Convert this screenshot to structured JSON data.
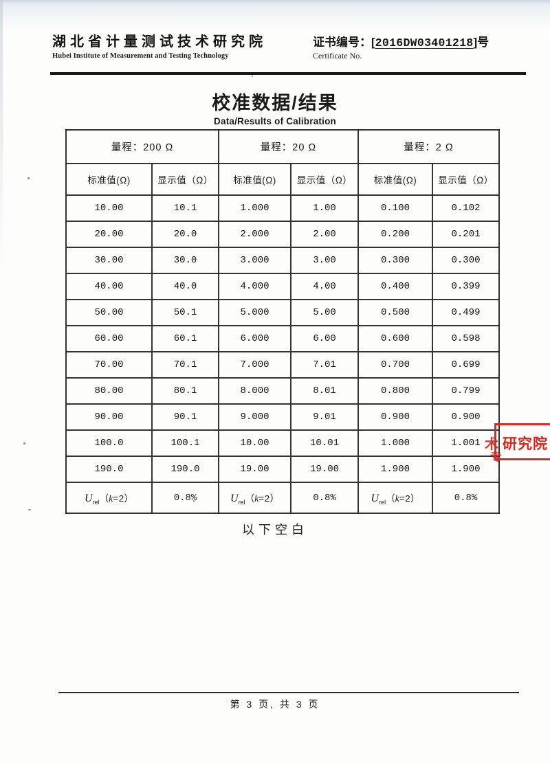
{
  "header": {
    "org_cn": "湖北省计量测试技术研究院",
    "org_en": "Hubei Institute of Measurement and Testing Technology",
    "cert_label": "证书编号：",
    "cert_open": "[",
    "cert_no": "2016DW03401218",
    "cert_close": "]",
    "cert_suffix": "号",
    "cert_en": "Certificate No."
  },
  "title": {
    "cn": "校准数据/结果",
    "en": "Data/Results of Calibration"
  },
  "table": {
    "range_headers": [
      "量程：200 Ω",
      "量程：20 Ω",
      "量程：2 Ω"
    ],
    "col_headers": [
      "标准值(Ω)",
      "显示值（Ω）",
      "标准值(Ω)",
      "显示值（Ω）",
      "标准值(Ω)",
      "显示值（Ω）"
    ],
    "rows": [
      [
        "10.00",
        "10.1",
        "1.000",
        "1.00",
        "0.100",
        "0.102"
      ],
      [
        "20.00",
        "20.0",
        "2.000",
        "2.00",
        "0.200",
        "0.201"
      ],
      [
        "30.00",
        "30.0",
        "3.000",
        "3.00",
        "0.300",
        "0.300"
      ],
      [
        "40.00",
        "40.0",
        "4.000",
        "4.00",
        "0.400",
        "0.399"
      ],
      [
        "50.00",
        "50.1",
        "5.000",
        "5.00",
        "0.500",
        "0.499"
      ],
      [
        "60.00",
        "60.1",
        "6.000",
        "6.00",
        "0.600",
        "0.598"
      ],
      [
        "70.00",
        "70.1",
        "7.000",
        "7.01",
        "0.700",
        "0.699"
      ],
      [
        "80.00",
        "80.1",
        "8.000",
        "8.01",
        "0.800",
        "0.799"
      ],
      [
        "90.00",
        "90.1",
        "9.000",
        "9.01",
        "0.900",
        "0.900"
      ],
      [
        "100.0",
        "100.1",
        "10.00",
        "10.01",
        "1.000",
        "1.001"
      ],
      [
        "190.0",
        "190.0",
        "19.00",
        "19.00",
        "1.900",
        "1.900"
      ]
    ],
    "uncertainty": {
      "sym": "U",
      "sub": "rel",
      "open": "（",
      "k": "k",
      "close": "=2）",
      "value": "0.8%"
    }
  },
  "notes": {
    "blank_below": "以下空白"
  },
  "stamp": {
    "text": "研究院",
    "partial_left": "术",
    "partial_below": "专",
    "color": "#e2281e"
  },
  "footer": {
    "page_info": "第 3 页, 共 3 页"
  }
}
